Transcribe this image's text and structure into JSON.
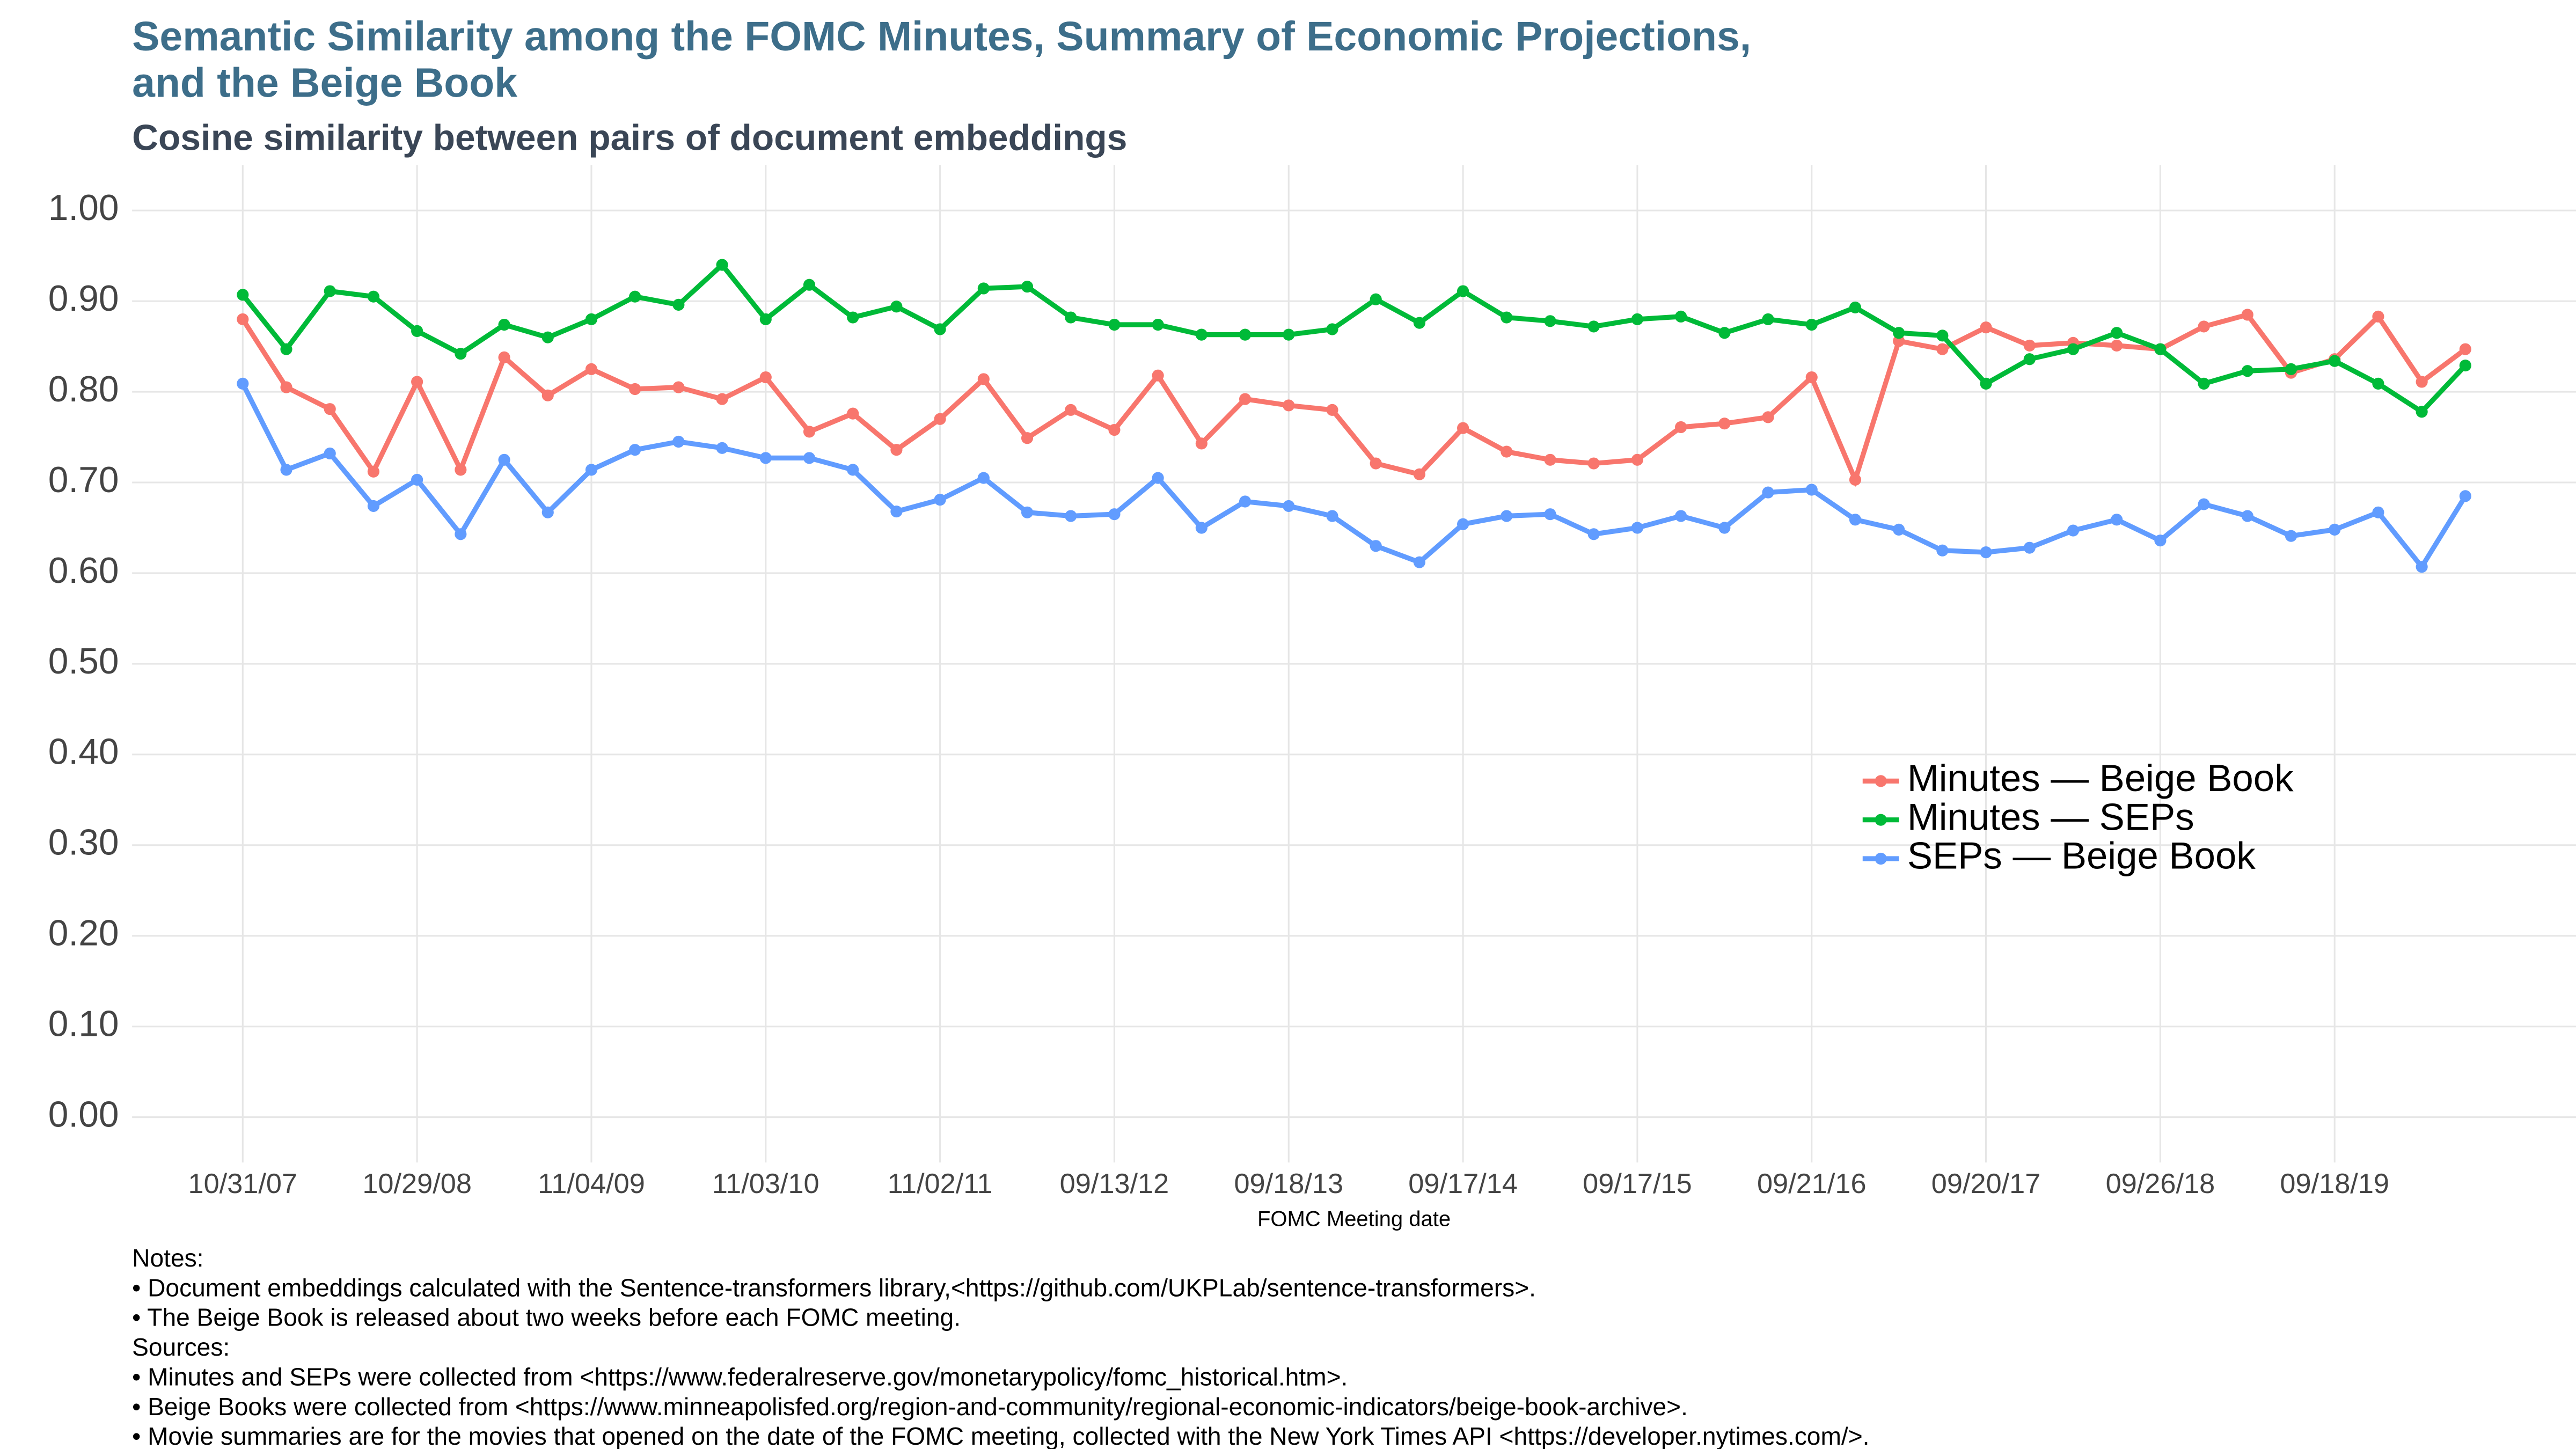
{
  "chart_data": {
    "type": "line",
    "title": [
      "Semantic Similarity among the FOMC Minutes, Summary of Economic Projections,",
      "and the Beige Book"
    ],
    "subtitle": "Cosine similarity between pairs of document embeddings",
    "x_label": "FOMC Meeting date",
    "categories": [
      "10/31/07",
      null,
      null,
      null,
      "10/29/08",
      null,
      null,
      null,
      "11/04/09",
      null,
      null,
      null,
      "11/03/10",
      null,
      null,
      null,
      "11/02/11",
      null,
      null,
      null,
      "09/13/12",
      null,
      null,
      null,
      "09/18/13",
      null,
      null,
      null,
      "09/17/14",
      null,
      null,
      null,
      "09/17/15",
      null,
      null,
      null,
      "09/21/16",
      null,
      null,
      null,
      "09/20/17",
      null,
      null,
      null,
      "09/26/18",
      null,
      null,
      null,
      "09/18/19",
      null,
      null,
      null
    ],
    "series": [
      {
        "name": "Minutes — Beige Book",
        "color": "#f8766d",
        "values": [
          0.88,
          0.805,
          0.781,
          0.712,
          0.811,
          0.714,
          0.838,
          0.796,
          0.825,
          0.803,
          0.805,
          0.792,
          0.816,
          0.756,
          0.776,
          0.736,
          0.77,
          0.814,
          0.749,
          0.78,
          0.758,
          0.818,
          0.743,
          0.792,
          0.785,
          0.78,
          0.721,
          0.709,
          0.76,
          0.734,
          0.725,
          0.721,
          0.725,
          0.761,
          0.765,
          0.772,
          0.816,
          0.703,
          0.856,
          0.847,
          0.871,
          0.851,
          0.854,
          0.851,
          0.847,
          0.872,
          0.885,
          0.821,
          0.836,
          0.883,
          0.811,
          0.847
        ]
      },
      {
        "name": "Minutes — SEPs",
        "color": "#00ba38",
        "values": [
          0.907,
          0.847,
          0.911,
          0.905,
          0.867,
          0.842,
          0.874,
          0.86,
          0.88,
          0.905,
          0.896,
          0.94,
          0.88,
          0.918,
          0.882,
          0.894,
          0.869,
          0.914,
          0.916,
          0.882,
          0.874,
          0.874,
          0.863,
          0.863,
          0.863,
          0.869,
          0.902,
          0.876,
          0.911,
          0.882,
          0.878,
          0.872,
          0.88,
          0.883,
          0.865,
          0.88,
          0.874,
          0.893,
          0.865,
          0.862,
          0.809,
          0.836,
          0.847,
          0.865,
          0.847,
          0.809,
          0.823,
          0.825,
          0.834,
          0.809,
          0.778,
          0.829
        ]
      },
      {
        "name": "SEPs — Beige Book",
        "color": "#619cff",
        "values": [
          0.809,
          0.714,
          0.732,
          0.674,
          0.703,
          0.643,
          0.725,
          0.667,
          0.714,
          0.736,
          0.745,
          0.738,
          0.727,
          0.727,
          0.714,
          0.668,
          0.681,
          0.705,
          0.667,
          0.663,
          0.665,
          0.705,
          0.65,
          0.679,
          0.674,
          0.663,
          0.63,
          0.612,
          0.654,
          0.663,
          0.665,
          0.643,
          0.65,
          0.663,
          0.65,
          0.689,
          0.692,
          0.659,
          0.648,
          0.625,
          0.623,
          0.628,
          0.647,
          0.659,
          0.636,
          0.676,
          0.663,
          0.641,
          0.648,
          0.667,
          0.607,
          0.685
        ]
      }
    ],
    "ylim": [
      -0.05,
      1.05
    ],
    "yticks": [
      {
        "value": 0,
        "label": "0.00"
      },
      {
        "value": 0.1,
        "label": "0.10"
      },
      {
        "value": 0.2,
        "label": "0.20"
      },
      {
        "value": 0.3,
        "label": "0.30"
      },
      {
        "value": 0.4,
        "label": "0.40"
      },
      {
        "value": 0.5,
        "label": "0.50"
      },
      {
        "value": 0.6,
        "label": "0.60"
      },
      {
        "value": 0.7,
        "label": "0.70"
      },
      {
        "value": 0.8,
        "label": "0.80"
      },
      {
        "value": 0.9,
        "label": "0.90"
      },
      {
        "value": 1,
        "label": "1.00"
      }
    ],
    "grid": true,
    "legend_position": "right",
    "notes": [
      "Notes:",
      "• Document embeddings calculated with the Sentence-transformers library,<https://github.com/UKPLab/sentence-transformers>.",
      "• The Beige Book is released about two weeks before each FOMC meeting.",
      "Sources:",
      "• Minutes and SEPs were collected from <https://www.federalreserve.gov/monetarypolicy/fomc_historical.htm>.",
      "• Beige Books were collected from <https://www.minneapolisfed.org/region-and-community/regional-economic-indicators/beige-book-archive>.",
      "• Movie summaries are for the movies that opened on the date of the FOMC meeting,  collected with the New York Times API <https://developer.nytimes.com/>."
    ]
  }
}
